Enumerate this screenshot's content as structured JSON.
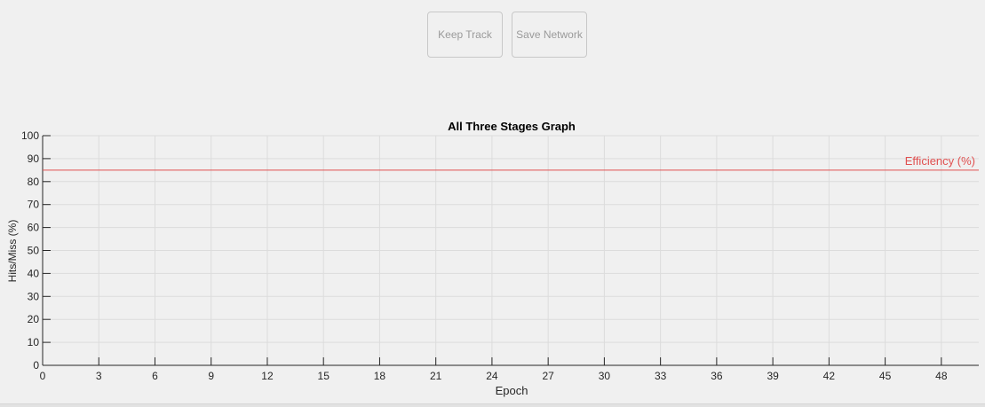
{
  "toolbar": {
    "keep_track_label": "Keep Track",
    "save_network_label": "Save Network"
  },
  "colors": {
    "background": "#f0f0f0",
    "efficiency_line": "#e05050",
    "axis": "#262626",
    "grid": "#dcdcdc",
    "button_text": "#9a9a9a"
  },
  "chart_data": {
    "type": "line",
    "title": "All Three Stages Graph",
    "xlabel": "Epoch",
    "ylabel": "Hits/Miss (%)",
    "xlim": [
      0,
      50
    ],
    "ylim": [
      0,
      100
    ],
    "xticks": [
      0,
      3,
      6,
      9,
      12,
      15,
      18,
      21,
      24,
      27,
      30,
      33,
      36,
      39,
      42,
      45,
      48
    ],
    "yticks": [
      0,
      10,
      20,
      30,
      40,
      50,
      60,
      70,
      80,
      90,
      100
    ],
    "grid": true,
    "reference_lines": [
      {
        "label": "Efficiency (%)",
        "y": 85
      }
    ],
    "series": []
  }
}
